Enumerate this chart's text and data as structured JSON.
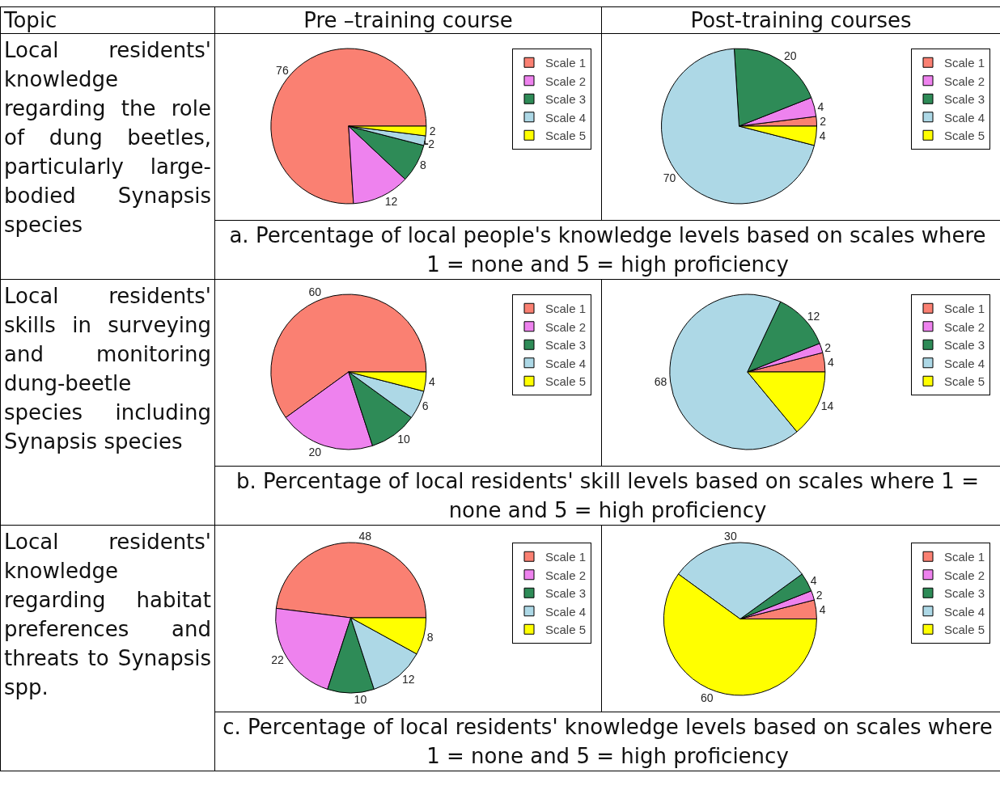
{
  "chart_data": [
    {
      "type": "pie",
      "title": "Pre –training course",
      "annotations": [
        "Topic",
        "Local residents' knowledge regarding the role of dung beetles, particularly large-bodied Synapsis species"
      ],
      "categories": [
        "Scale 1",
        "Scale 2",
        "Scale 3",
        "Scale 4",
        "Scale 5"
      ],
      "values": [
        76,
        12,
        8,
        2,
        2
      ],
      "colors": [
        "#fa8072",
        "#ee82ee",
        "#2e8b57",
        "#add8e6",
        "#ffff00"
      ],
      "data_labels": true,
      "legend": "top right"
    },
    {
      "type": "pie",
      "title": "Post-training courses",
      "annotations": [
        "a. Percentage of local people's knowledge levels based on scales where 1 = none and 5 = high proficiency"
      ],
      "categories": [
        "Scale 1",
        "Scale 2",
        "Scale 3",
        "Scale 4",
        "Scale 5"
      ],
      "values": [
        2,
        4,
        20,
        70,
        4
      ],
      "colors": [
        "#fa8072",
        "#ee82ee",
        "#2e8b57",
        "#add8e6",
        "#ffff00"
      ],
      "data_labels": true,
      "legend": "top right"
    },
    {
      "type": "pie",
      "annotations": [
        "Local residents' skills in surveying and monitoring dung-beetle species including Synapsis species"
      ],
      "categories": [
        "Scale 1",
        "Scale 2",
        "Scale 3",
        "Scale 4",
        "Scale 5"
      ],
      "values": [
        60,
        20,
        10,
        6,
        4
      ],
      "colors": [
        "#fa8072",
        "#ee82ee",
        "#2e8b57",
        "#add8e6",
        "#ffff00"
      ],
      "data_labels": true,
      "legend": "top right"
    },
    {
      "type": "pie",
      "annotations": [
        "b. Percentage of local residents' skill levels based on scales where 1 = none and 5 = high proficiency"
      ],
      "categories": [
        "Scale 1",
        "Scale 2",
        "Scale 3",
        "Scale 4",
        "Scale 5"
      ],
      "values": [
        4,
        2,
        12,
        68,
        14
      ],
      "colors": [
        "#fa8072",
        "#ee82ee",
        "#2e8b57",
        "#add8e6",
        "#ffff00"
      ],
      "data_labels": true,
      "legend": "top right"
    },
    {
      "type": "pie",
      "annotations": [
        "Local residents' knowledge regarding habitat preferences and threats to Synapsis spp."
      ],
      "categories": [
        "Scale 1",
        "Scale 2",
        "Scale 3",
        "Scale 4",
        "Scale 5"
      ],
      "values": [
        48,
        22,
        10,
        12,
        8
      ],
      "colors": [
        "#fa8072",
        "#ee82ee",
        "#2e8b57",
        "#add8e6",
        "#ffff00"
      ],
      "data_labels": true,
      "legend": "top right"
    },
    {
      "type": "pie",
      "annotations": [
        "c. Percentage of local residents'  knowledge levels based on scales where 1 = none and 5 = high proficiency"
      ],
      "categories": [
        "Scale 1",
        "Scale 2",
        "Scale 3",
        "Scale 4",
        "Scale 5"
      ],
      "values": [
        4,
        2,
        4,
        30,
        60
      ],
      "colors": [
        "#fa8072",
        "#ee82ee",
        "#2e8b57",
        "#add8e6",
        "#ffff00"
      ],
      "data_labels": true,
      "legend": "top right"
    }
  ]
}
